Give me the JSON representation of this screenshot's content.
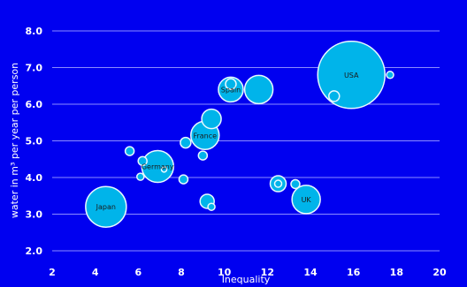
{
  "chart_data": {
    "type": "bubble",
    "xlabel": "Inequality",
    "ylabel": "water in m³ per year per person",
    "xlim": [
      2,
      20
    ],
    "ylim": [
      2.0,
      8.0
    ],
    "xticks": [
      2,
      4,
      6,
      8,
      10,
      12,
      14,
      16,
      18,
      20
    ],
    "yticks": [
      2.0,
      3.0,
      4.0,
      5.0,
      6.0,
      7.0,
      8.0
    ],
    "ytick_labels": [
      "2.0",
      "3.0",
      "4.0",
      "5.0",
      "6.0",
      "7.0",
      "8.0"
    ],
    "grid": "horizontal",
    "colors": {
      "background": "#0000f0",
      "bubble_fill": "#00b4ea",
      "bubble_stroke": "#e8f8ff",
      "grid": "#8c8cff",
      "text": "#ffffff",
      "label": "#1a1a1a"
    },
    "points": [
      {
        "label": "USA",
        "x": 15.9,
        "y": 6.8,
        "size": 38
      },
      {
        "label": "Japan",
        "x": 4.5,
        "y": 3.2,
        "size": 23
      },
      {
        "label": "Germany",
        "x": 6.9,
        "y": 4.3,
        "size": 18
      },
      {
        "label": "France",
        "x": 9.1,
        "y": 5.15,
        "size": 16
      },
      {
        "label": "Spain",
        "x": 10.3,
        "y": 6.4,
        "size": 14
      },
      {
        "label": "UK",
        "x": 13.8,
        "y": 3.4,
        "size": 16
      },
      {
        "label": "",
        "x": 11.6,
        "y": 6.4,
        "size": 16
      },
      {
        "label": "",
        "x": 9.4,
        "y": 5.6,
        "size": 11
      },
      {
        "label": "",
        "x": 9.2,
        "y": 3.35,
        "size": 8
      },
      {
        "label": "",
        "x": 12.5,
        "y": 3.83,
        "size": 9
      },
      {
        "label": "",
        "x": 12.5,
        "y": 3.83,
        "size": 4
      },
      {
        "label": "",
        "x": 10.3,
        "y": 6.55,
        "size": 6
      },
      {
        "label": "",
        "x": 8.2,
        "y": 4.95,
        "size": 6
      },
      {
        "label": "",
        "x": 5.6,
        "y": 4.72,
        "size": 5
      },
      {
        "label": "",
        "x": 6.2,
        "y": 4.45,
        "size": 5
      },
      {
        "label": "",
        "x": 6.1,
        "y": 4.02,
        "size": 4
      },
      {
        "label": "",
        "x": 7.2,
        "y": 4.22,
        "size": 3
      },
      {
        "label": "",
        "x": 8.1,
        "y": 3.95,
        "size": 5
      },
      {
        "label": "",
        "x": 9.0,
        "y": 4.6,
        "size": 5
      },
      {
        "label": "",
        "x": 9.4,
        "y": 3.2,
        "size": 4
      },
      {
        "label": "",
        "x": 13.3,
        "y": 3.82,
        "size": 5
      },
      {
        "label": "",
        "x": 15.1,
        "y": 6.22,
        "size": 6
      },
      {
        "label": "",
        "x": 17.7,
        "y": 6.8,
        "size": 4
      }
    ]
  }
}
